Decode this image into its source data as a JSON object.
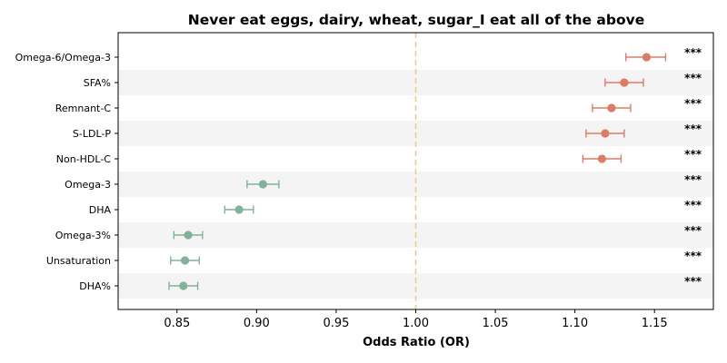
{
  "chart_data": {
    "type": "scatter",
    "subtype": "forest-plot",
    "title": "Never eat eggs, dairy, wheat, sugar_I eat all of the above",
    "xlabel": "Odds Ratio (OR)",
    "ylabel": "",
    "xlim": [
      0.813,
      1.187
    ],
    "xticks": [
      "0.85",
      "0.90",
      "0.95",
      "1.00",
      "1.05",
      "1.10",
      "1.15"
    ],
    "reference_line": {
      "x": 1.0,
      "style": "dashed",
      "color": "#f2c986"
    },
    "row_banding": true,
    "grid": false,
    "colors": {
      "increase": "#e07b63",
      "decrease": "#7fb39a",
      "band": "#f4f4f4"
    },
    "categories": [
      "Omega-6/Omega-3",
      "SFA%",
      "Remnant-C",
      "S-LDL-P",
      "Non-HDL-C",
      "Omega-3",
      "DHA",
      "Omega-3%",
      "Unsaturation",
      "DHA%"
    ],
    "or": [
      1.145,
      1.131,
      1.123,
      1.119,
      1.117,
      0.904,
      0.889,
      0.857,
      0.855,
      0.854
    ],
    "ci_low": [
      1.132,
      1.119,
      1.111,
      1.107,
      1.105,
      0.894,
      0.88,
      0.848,
      0.846,
      0.845
    ],
    "ci_high": [
      1.157,
      1.143,
      1.135,
      1.131,
      1.129,
      0.914,
      0.898,
      0.866,
      0.864,
      0.863
    ],
    "significance": [
      "***",
      "***",
      "***",
      "***",
      "***",
      "***",
      "***",
      "***",
      "***",
      "***"
    ]
  }
}
